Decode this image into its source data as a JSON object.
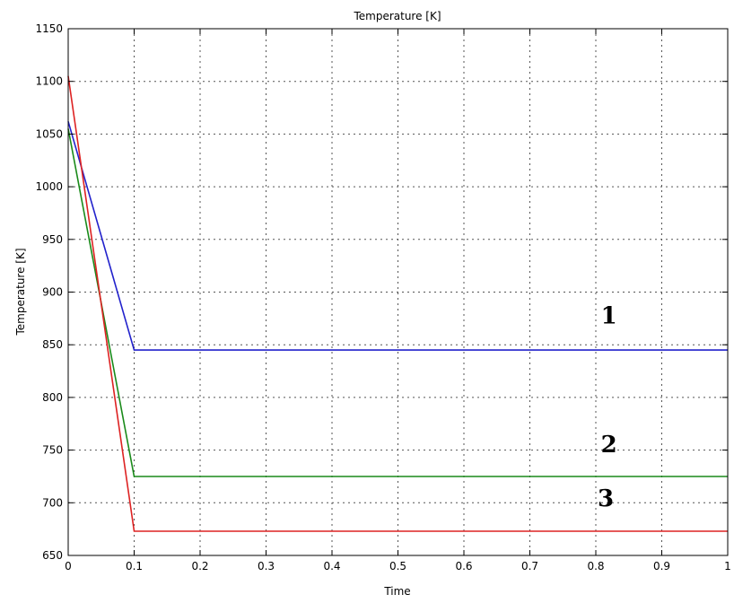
{
  "chart_data": {
    "type": "line",
    "title": "Temperature [K]",
    "xlabel": "Time",
    "ylabel": "Temperature [K]",
    "xlim": [
      0,
      1
    ],
    "ylim": [
      650,
      1150
    ],
    "x_ticks": [
      "0",
      "0.1",
      "0.2",
      "0.3",
      "0.4",
      "0.5",
      "0.6",
      "0.7",
      "0.8",
      "0.9",
      "1"
    ],
    "y_ticks": [
      "650",
      "700",
      "750",
      "800",
      "850",
      "900",
      "950",
      "1000",
      "1050",
      "1100",
      "1150"
    ],
    "grid": true,
    "series": [
      {
        "color": "#2222cc",
        "x": [
          0,
          0.1,
          1
        ],
        "y": [
          1062,
          845,
          845
        ]
      },
      {
        "color": "#1a8a1a",
        "x": [
          0,
          0.1,
          1
        ],
        "y": [
          1055,
          725,
          725
        ]
      },
      {
        "color": "#dd2222",
        "x": [
          0,
          0.1,
          1
        ],
        "y": [
          1105,
          673,
          673
        ]
      }
    ],
    "annotations": [
      {
        "text": "1",
        "x": 0.82,
        "y": 870
      },
      {
        "text": "2",
        "x": 0.82,
        "y": 748
      },
      {
        "text": "3",
        "x": 0.815,
        "y": 697
      }
    ]
  }
}
